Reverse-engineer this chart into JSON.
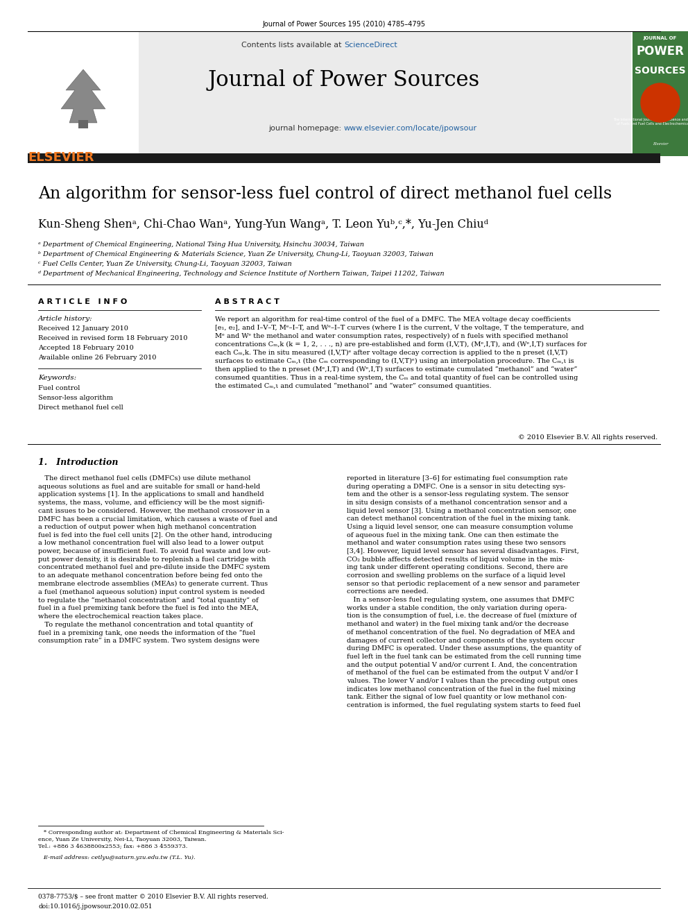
{
  "page_bg": "#ffffff",
  "page_width": 9.92,
  "page_height": 13.23,
  "top_journal_line": "Journal of Power Sources 195 (2010) 4785–4795",
  "header_bg": "#e8e8e8",
  "header_text1": "Contents lists available at ",
  "header_sciencedirect": "ScienceDirect",
  "header_sciencedirect_color": "#2060a0",
  "journal_title": "Journal of Power Sources",
  "journal_homepage_prefix": "journal homepage: ",
  "journal_homepage_url": "www.elsevier.com/locate/jpowsour",
  "journal_homepage_color": "#2060a0",
  "dark_bar_color": "#1a1a1a",
  "article_title": "An algorithm for sensor-less fuel control of direct methanol fuel cells",
  "authors": "Kun-Sheng Shenᵃ, Chi-Chao Wanᵃ, Yung-Yun Wangᵃ, T. Leon Yuᵇ,ᶜ,*, Yu-Jen Chiuᵈ",
  "affil_a": "ᵃ Department of Chemical Engineering, National Tsing Hua University, Hsinchu 30034, Taiwan",
  "affil_b": "ᵇ Department of Chemical Engineering & Materials Science, Yuan Ze University, Chung-Li, Taoyuan 32003, Taiwan",
  "affil_c": "ᶜ Fuel Cells Center, Yuan Ze University, Chung-Li, Taoyuan 32003, Taiwan",
  "affil_d": "ᵈ Department of Mechanical Engineering, Technology and Science Institute of Northern Taiwan, Taipei 11202, Taiwan",
  "article_info_title": "A R T I C L E   I N F O",
  "article_history_title": "Article history:",
  "received_1": "Received 12 January 2010",
  "received_revised": "Received in revised form 18 February 2010",
  "accepted": "Accepted 18 February 2010",
  "available": "Available online 26 February 2010",
  "keywords_title": "Keywords:",
  "keyword1": "Fuel control",
  "keyword2": "Sensor-less algorithm",
  "keyword3": "Direct methanol fuel cell",
  "abstract_text": "We report an algorithm for real-time control of the fuel of a DMFC. The MEA voltage decay coefficients\n[e₁, e₂], and I–V–T, Mᵉ–I–T, and Wᵉ–I–T curves (where I is the current, V the voltage, T the temperature, and\nMᵉ and Wᵉ the methanol and water consumption rates, respectively) of n fuels with specified methanol\nconcentrations Cₘ,k (k = 1, 2, . . ., n) are pre-established and form (I,V,T), (Mᵉ,I,T), and (Wᵉ,I,T) surfaces for\neach Cₘ,k. The in situ measured (I,V,T)ᵉ after voltage decay correction is applied to the n preset (I,V,T)\nsurfaces to estimate Cₘ,ι (the Cₘ corresponding to (I,V,T)ᵉ) using an interpolation procedure. The Cₘ,ι is\nthen applied to the n preset (Mᵉ,I,T) and (Wᵉ,I,T) surfaces to estimate cumulated “methanol” and “water”\nconsumed quantities. Thus in a real-time system, the Cₘ and total quantity of fuel can be controlled using\nthe estimated Cₘ,ι and cumulated “methanol” and “water” consumed quantities.",
  "copyright": "© 2010 Elsevier B.V. All rights reserved.",
  "intro_title": "1.   Introduction",
  "intro_col1_p1": "   The direct methanol fuel cells (DMFCs) use dilute methanol\naqueous solutions as fuel and are suitable for small or hand-held\napplication systems [1]. In the applications to small and handheld\nsystems, the mass, volume, and efficiency will be the most signifi-\ncant issues to be considered. However, the methanol crossover in a\nDMFC has been a crucial limitation, which causes a waste of fuel and\na reduction of output power when high methanol concentration\nfuel is fed into the fuel cell units [2]. On the other hand, introducing\na low methanol concentration fuel will also lead to a lower output\npower, because of insufficient fuel. To avoid fuel waste and low out-\nput power density, it is desirable to replenish a fuel cartridge with\nconcentrated methanol fuel and pre-dilute inside the DMFC system\nto an adequate methanol concentration before being fed onto the\nmembrane electrode assemblies (MEAs) to generate current. Thus\na fuel (methanol aqueous solution) input control system is needed\nto regulate the “methanol concentration” and “total quantity” of\nfuel in a fuel premixing tank before the fuel is fed into the MEA,\nwhere the electrochemical reaction takes place.\n   To regulate the methanol concentration and total quantity of\nfuel in a premixing tank, one needs the information of the “fuel\nconsumption rate” in a DMFC system. Two system designs were",
  "intro_col2_p1": "reported in literature [3–6] for estimating fuel consumption rate\nduring operating a DMFC. One is a sensor in situ detecting sys-\ntem and the other is a sensor-less regulating system. The sensor\nin situ design consists of a methanol concentration sensor and a\nliquid level sensor [3]. Using a methanol concentration sensor, one\ncan detect methanol concentration of the fuel in the mixing tank.\nUsing a liquid level sensor, one can measure consumption volume\nof aqueous fuel in the mixing tank. One can then estimate the\nmethanol and water consumption rates using these two sensors\n[3,4]. However, liquid level sensor has several disadvantages. First,\nCO₂ bubble affects detected results of liquid volume in the mix-\ning tank under different operating conditions. Second, there are\ncorrosion and swelling problems on the surface of a liquid level\nsensor so that periodic replacement of a new sensor and parameter\ncorrections are needed.\n   In a sensor-less fuel regulating system, one assumes that DMFC\nworks under a stable condition, the only variation during opera-\ntion is the consumption of fuel, i.e. the decrease of fuel (mixture of\nmethanol and water) in the fuel mixing tank and/or the decrease\nof methanol concentration of the fuel. No degradation of MEA and\ndamages of current collector and components of the system occur\nduring DMFC is operated. Under these assumptions, the quantity of\nfuel left in the fuel tank can be estimated from the cell running time\nand the output potential V and/or current I. And, the concentration\nof methanol of the fuel can be estimated from the output V and/or I\nvalues. The lower V and/or I values than the preceding output ones\nindicates low methanol concentration of the fuel in the fuel mixing\ntank. Either the signal of low fuel quantity or low methanol con-\ncentration is informed, the fuel regulating system starts to feed fuel",
  "footnote_star": "   * Corresponding author at: Department of Chemical Engineering & Materials Sci-\nence, Yuan Ze University, Nei-Li, Taoyuan 32003, Taiwan.\nTel.: +886 3 4638800x2553; fax: +886 3 4559373.",
  "footnote_email": "   E-mail address: cetlyu@saturn.yzu.edu.tw (T.L. Yu).",
  "footer_text1": "0378-7753/$ – see front matter © 2010 Elsevier B.V. All rights reserved.",
  "footer_text2": "doi:10.1016/j.jpowsour.2010.02.051",
  "elsevier_color": "#f07820",
  "journal_cover_bg": "#3d7a3d",
  "journal_cover_text_color": "#ffffff",
  "abstract_title": "A B S T R A C T"
}
